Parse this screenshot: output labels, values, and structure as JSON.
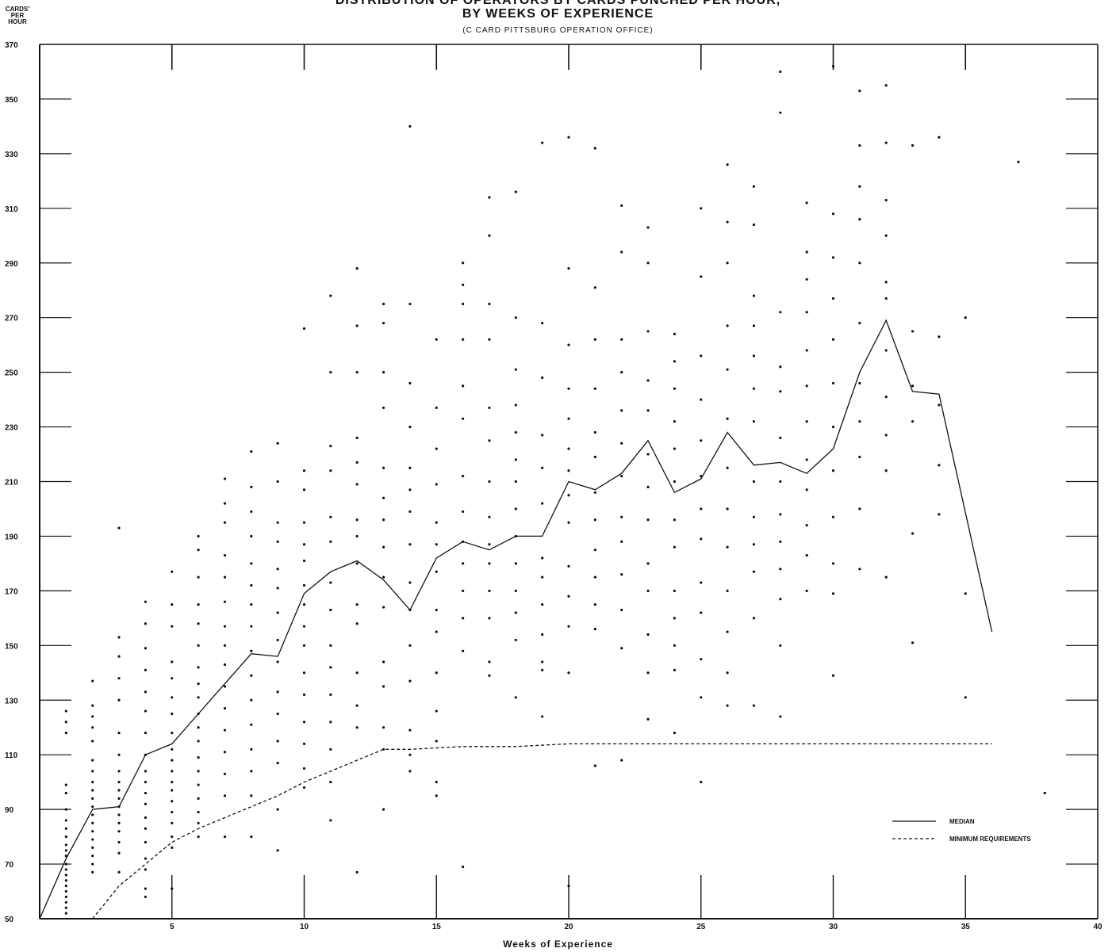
{
  "chart_data": {
    "type": "line",
    "title": "DISTRIBUTION OF OPERATORS BY CARDS PUNCHED PER HOUR,",
    "title_line2": "BY WEEKS OF EXPERIENCE",
    "subtitle": "(C CARD PITTSBURG OPERATION OFFICE)",
    "ylabel_lines": [
      "CARDS'",
      "PER",
      "HOUR"
    ],
    "xlabel": "Weeks of Experience",
    "xlim": [
      0,
      40
    ],
    "ylim": [
      50,
      370
    ],
    "xticks": [
      5,
      10,
      15,
      20,
      25,
      30,
      35,
      40
    ],
    "xtick_labels": [
      "5",
      "10",
      "15",
      "20",
      "25",
      "30",
      "35",
      "40"
    ],
    "yticks": [
      50,
      70,
      90,
      110,
      130,
      150,
      170,
      190,
      210,
      230,
      250,
      270,
      290,
      310,
      330,
      350,
      370
    ],
    "ytick_labels": [
      "50",
      "70",
      "90",
      "110",
      "130",
      "150",
      "170",
      "190",
      "210",
      "230",
      "250",
      "270",
      "290",
      "310",
      "330",
      "350",
      "370"
    ],
    "grid": false,
    "legend": {
      "position": "bottom-right",
      "entries": [
        "MEDIAN",
        "MINIMUM REQUIREMENTS"
      ]
    },
    "series": [
      {
        "name": "MEDIAN",
        "style": "solid",
        "x": [
          0,
          1,
          2,
          3,
          4,
          5,
          6,
          7,
          8,
          9,
          10,
          11,
          12,
          13,
          14,
          15,
          16,
          17,
          18,
          19,
          20,
          21,
          22,
          23,
          24,
          25,
          26,
          27,
          28,
          29,
          30,
          31,
          32,
          33,
          34,
          36
        ],
        "y": [
          50,
          72,
          90,
          91,
          110,
          114,
          125,
          136,
          147,
          146,
          169,
          177,
          181,
          174,
          163,
          182,
          188,
          185,
          190,
          190,
          210,
          207,
          213,
          225,
          206,
          211,
          228,
          216,
          217,
          213,
          222,
          250,
          269,
          243,
          242,
          155
        ]
      },
      {
        "name": "MINIMUM REQUIREMENTS",
        "style": "dashed",
        "x": [
          2,
          3,
          4,
          5,
          6,
          7,
          8,
          9,
          10,
          11,
          12,
          13,
          14,
          16,
          18,
          20,
          25,
          30,
          36
        ],
        "y": [
          50,
          62,
          70,
          78,
          83,
          87,
          91,
          95,
          100,
          104,
          108,
          112,
          112,
          113,
          113,
          114,
          114,
          114,
          114
        ]
      }
    ],
    "scatter": {
      "name": "operators",
      "x": [
        1,
        1,
        1,
        1,
        1,
        1,
        1,
        1,
        1,
        1,
        1,
        1,
        1,
        1,
        1,
        1,
        1,
        1,
        1,
        1,
        1,
        1,
        2,
        2,
        2,
        2,
        2,
        2,
        2,
        2,
        2,
        2,
        2,
        2,
        2,
        2,
        2,
        2,
        2,
        2,
        2,
        3,
        3,
        3,
        3,
        3,
        3,
        3,
        3,
        3,
        3,
        3,
        3,
        3,
        3,
        3,
        3,
        3,
        3,
        4,
        4,
        4,
        4,
        4,
        4,
        4,
        4,
        4,
        4,
        4,
        4,
        4,
        4,
        4,
        4,
        4,
        4,
        4,
        5,
        5,
        5,
        5,
        5,
        5,
        5,
        5,
        5,
        5,
        5,
        5,
        5,
        5,
        5,
        5,
        5,
        5,
        5,
        6,
        6,
        6,
        6,
        6,
        6,
        6,
        6,
        6,
        6,
        6,
        6,
        6,
        6,
        6,
        6,
        6,
        6,
        6,
        7,
        7,
        7,
        7,
        7,
        7,
        7,
        7,
        7,
        7,
        7,
        7,
        7,
        7,
        7,
        7,
        8,
        8,
        8,
        8,
        8,
        8,
        8,
        8,
        8,
        8,
        8,
        8,
        8,
        8,
        8,
        8,
        9,
        9,
        9,
        9,
        9,
        9,
        9,
        9,
        9,
        9,
        9,
        9,
        9,
        9,
        9,
        10,
        10,
        10,
        10,
        10,
        10,
        10,
        10,
        10,
        10,
        10,
        10,
        10,
        10,
        10,
        10,
        11,
        11,
        11,
        11,
        11,
        11,
        11,
        11,
        11,
        11,
        11,
        11,
        11,
        11,
        11,
        12,
        12,
        12,
        12,
        12,
        12,
        12,
        12,
        12,
        12,
        12,
        12,
        12,
        12,
        12,
        13,
        13,
        13,
        13,
        13,
        13,
        13,
        13,
        13,
        13,
        13,
        13,
        13,
        13,
        13,
        14,
        14,
        14,
        14,
        14,
        14,
        14,
        14,
        14,
        14,
        14,
        14,
        14,
        14,
        14,
        15,
        15,
        15,
        15,
        15,
        15,
        15,
        15,
        15,
        15,
        15,
        15,
        15,
        15,
        16,
        16,
        16,
        16,
        16,
        16,
        16,
        16,
        16,
        16,
        16,
        16,
        16,
        16,
        17,
        17,
        17,
        17,
        17,
        17,
        17,
        17,
        17,
        17,
        17,
        17,
        17,
        17,
        18,
        18,
        18,
        18,
        18,
        18,
        18,
        18,
        18,
        18,
        18,
        18,
        18,
        18,
        19,
        19,
        19,
        19,
        19,
        19,
        19,
        19,
        19,
        19,
        19,
        19,
        19,
        20,
        20,
        20,
        20,
        20,
        20,
        20,
        20,
        20,
        20,
        20,
        20,
        20,
        20,
        21,
        21,
        21,
        21,
        21,
        21,
        21,
        21,
        21,
        21,
        21,
        21,
        21,
        22,
        22,
        22,
        22,
        22,
        22,
        22,
        22,
        22,
        22,
        22,
        22,
        22,
        23,
        23,
        23,
        23,
        23,
        23,
        23,
        23,
        23,
        23,
        23,
        23,
        23,
        24,
        24,
        24,
        24,
        24,
        24,
        24,
        24,
        24,
        24,
        24,
        24,
        24,
        25,
        25,
        25,
        25,
        25,
        25,
        25,
        25,
        25,
        25,
        25,
        25,
        25,
        26,
        26,
        26,
        26,
        26,
        26,
        26,
        26,
        26,
        26,
        26,
        26,
        26,
        27,
        27,
        27,
        27,
        27,
        27,
        27,
        27,
        27,
        27,
        27,
        27,
        27,
        28,
        28,
        28,
        28,
        28,
        28,
        28,
        28,
        28,
        28,
        28,
        28,
        28,
        29,
        29,
        29,
        29,
        29,
        29,
        29,
        29,
        29,
        29,
        29,
        29,
        30,
        30,
        30,
        30,
        30,
        30,
        30,
        30,
        30,
        30,
        30,
        30,
        31,
        31,
        31,
        31,
        31,
        31,
        31,
        31,
        31,
        31,
        31,
        32,
        32,
        32,
        32,
        32,
        32,
        32,
        32,
        32,
        32,
        32,
        33,
        33,
        33,
        33,
        33,
        33,
        34,
        34,
        34,
        34,
        34,
        35,
        35,
        35,
        37,
        38
      ],
      "y": [
        99,
        96,
        90,
        86,
        83,
        80,
        77,
        75,
        73,
        70,
        68,
        66,
        64,
        62,
        60,
        58,
        56,
        54,
        52,
        118,
        122,
        126,
        137,
        128,
        124,
        120,
        115,
        108,
        104,
        100,
        97,
        94,
        91,
        88,
        85,
        82,
        79,
        76,
        73,
        70,
        67,
        67,
        193,
        153,
        146,
        138,
        130,
        118,
        110,
        104,
        100,
        97,
        94,
        91,
        88,
        85,
        82,
        78,
        74,
        166,
        158,
        149,
        141,
        133,
        126,
        118,
        110,
        104,
        100,
        96,
        92,
        87,
        83,
        78,
        72,
        68,
        58,
        61,
        177,
        165,
        157,
        144,
        138,
        131,
        125,
        118,
        112,
        108,
        104,
        100,
        97,
        93,
        89,
        85,
        80,
        61,
        76,
        190,
        185,
        175,
        165,
        158,
        150,
        142,
        136,
        131,
        125,
        120,
        115,
        109,
        104,
        99,
        94,
        89,
        85,
        80,
        211,
        202,
        195,
        183,
        175,
        166,
        157,
        150,
        143,
        135,
        127,
        119,
        111,
        103,
        95,
        80,
        221,
        208,
        199,
        190,
        180,
        172,
        165,
        157,
        148,
        139,
        130,
        121,
        112,
        104,
        95,
        80,
        224,
        210,
        195,
        188,
        178,
        171,
        162,
        152,
        144,
        133,
        125,
        115,
        107,
        90,
        75,
        214,
        207,
        195,
        187,
        181,
        172,
        165,
        157,
        150,
        140,
        132,
        122,
        114,
        105,
        98,
        266,
        278,
        250,
        223,
        214,
        197,
        188,
        173,
        163,
        150,
        142,
        132,
        122,
        112,
        100,
        86,
        67,
        288,
        267,
        250,
        226,
        217,
        209,
        196,
        190,
        180,
        165,
        158,
        140,
        128,
        120,
        90,
        275,
        268,
        250,
        237,
        215,
        204,
        196,
        186,
        175,
        164,
        144,
        135,
        120,
        112,
        104,
        340,
        275,
        246,
        230,
        215,
        207,
        199,
        187,
        173,
        163,
        150,
        137,
        119,
        110,
        100,
        262,
        237,
        222,
        209,
        195,
        187,
        177,
        163,
        155,
        140,
        126,
        115,
        95,
        69,
        290,
        282,
        275,
        262,
        245,
        233,
        212,
        199,
        188,
        180,
        170,
        160,
        148,
        139,
        314,
        300,
        275,
        262,
        237,
        225,
        210,
        197,
        187,
        180,
        170,
        160,
        144,
        131,
        316,
        270,
        251,
        238,
        228,
        218,
        210,
        200,
        190,
        180,
        170,
        162,
        152,
        141,
        334,
        268,
        248,
        227,
        215,
        202,
        182,
        175,
        165,
        154,
        144,
        124,
        62,
        336,
        288,
        260,
        244,
        233,
        222,
        214,
        205,
        195,
        179,
        168,
        157,
        140,
        332,
        281,
        262,
        244,
        228,
        219,
        206,
        196,
        185,
        175,
        165,
        156,
        106,
        311,
        294,
        262,
        250,
        236,
        224,
        212,
        197,
        188,
        176,
        163,
        149,
        108,
        303,
        290,
        265,
        247,
        236,
        220,
        208,
        196,
        180,
        170,
        154,
        140,
        123,
        264,
        254,
        244,
        232,
        222,
        210,
        196,
        186,
        170,
        160,
        150,
        141,
        118,
        310,
        285,
        256,
        240,
        225,
        212,
        200,
        189,
        173,
        162,
        145,
        131,
        100,
        326,
        305,
        290,
        267,
        251,
        233,
        215,
        200,
        186,
        170,
        155,
        140,
        128,
        318,
        304,
        278,
        267,
        256,
        244,
        232,
        210,
        197,
        187,
        177,
        160,
        128,
        360,
        345,
        272,
        252,
        243,
        226,
        210,
        198,
        188,
        178,
        167,
        150,
        124,
        312,
        294,
        284,
        272,
        258,
        245,
        232,
        218,
        207,
        194,
        183,
        170,
        362,
        308,
        292,
        277,
        262,
        246,
        230,
        214,
        197,
        180,
        169,
        139,
        353,
        333,
        318,
        306,
        290,
        268,
        246,
        232,
        219,
        200,
        178,
        355,
        334,
        313,
        300,
        283,
        277,
        258,
        241,
        227,
        214,
        175,
        333,
        265,
        245,
        232,
        191,
        151,
        336,
        263,
        238,
        216,
        198,
        270,
        169,
        131,
        327,
        96
      ]
    }
  }
}
